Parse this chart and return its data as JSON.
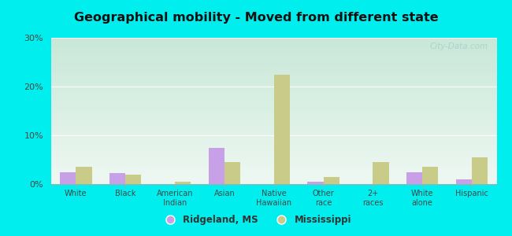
{
  "title": "Geographical mobility - Moved from different state",
  "categories": [
    "White",
    "Black",
    "American\nIndian",
    "Asian",
    "Native\nHawaiian",
    "Other\nrace",
    "2+\nraces",
    "White\nalone",
    "Hispanic"
  ],
  "ridgeland_values": [
    2.5,
    2.2,
    0.0,
    7.5,
    0.0,
    0.5,
    0.0,
    2.5,
    1.0
  ],
  "mississippi_values": [
    3.5,
    2.0,
    0.5,
    4.5,
    22.5,
    1.5,
    4.5,
    3.5,
    5.5
  ],
  "ridgeland_color": "#c8a0e8",
  "mississippi_color": "#c8cc88",
  "background_color": "#00eeee",
  "plot_bg_color_top": "#c8e8d8",
  "plot_bg_color_bottom": "#eef8f0",
  "ylim": [
    0,
    30
  ],
  "yticks": [
    0,
    10,
    20,
    30
  ],
  "ytick_labels": [
    "0%",
    "10%",
    "20%",
    "30%"
  ],
  "bar_width": 0.32,
  "legend_ridgeland": "Ridgeland, MS",
  "legend_mississippi": "Mississippi",
  "watermark": "City-Data.com"
}
